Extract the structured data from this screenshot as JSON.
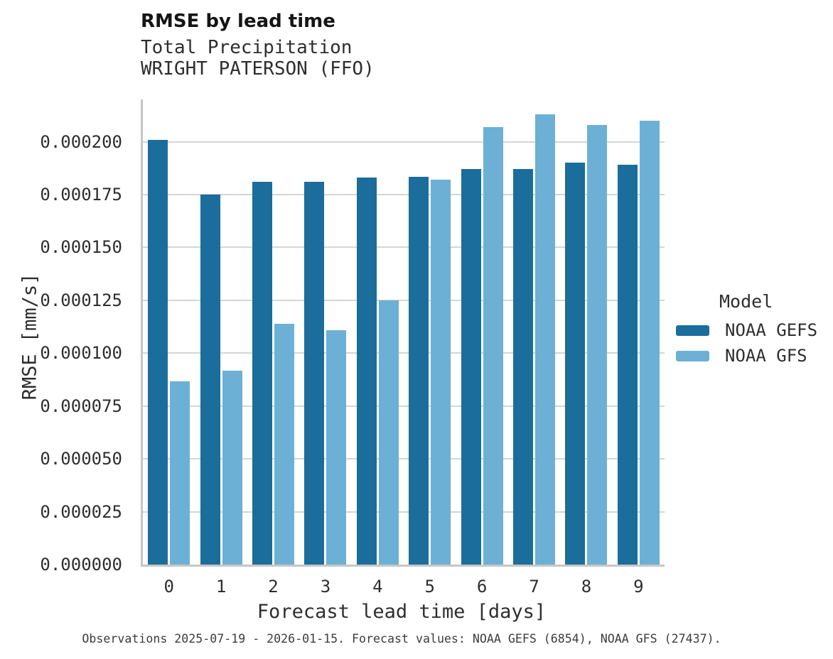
{
  "header": {
    "title": "RMSE by lead time",
    "subtitle_variable": "Total Precipitation",
    "subtitle_station": "WRIGHT PATERSON (FFO)"
  },
  "chart_data": {
    "type": "bar",
    "title": "RMSE by lead time",
    "subtitle": [
      "Total Precipitation",
      "WRIGHT PATERSON (FFO)"
    ],
    "xlabel": "Forecast lead time [days]",
    "ylabel": "RMSE [mm/s]",
    "categories": [
      "0",
      "1",
      "2",
      "3",
      "4",
      "5",
      "6",
      "7",
      "8",
      "9"
    ],
    "series": [
      {
        "name": "NOAA GEFS",
        "color": "#1b6d9b",
        "values": [
          0.000201,
          0.000175,
          0.000181,
          0.000181,
          0.000183,
          0.0001835,
          0.000187,
          0.000187,
          0.00019,
          0.000189
        ]
      },
      {
        "name": "NOAA GFS",
        "color": "#6cb0d5",
        "values": [
          8.67e-05,
          9.16e-05,
          0.000114,
          0.000111,
          0.000125,
          0.000182,
          0.000207,
          0.000213,
          0.000208,
          0.00021
        ]
      }
    ],
    "ylim": [
      0,
      0.00022
    ],
    "yticks": [
      {
        "value": 0.0,
        "label": "0.000000"
      },
      {
        "value": 2.5e-05,
        "label": "0.000025"
      },
      {
        "value": 5e-05,
        "label": "0.000050"
      },
      {
        "value": 7.5e-05,
        "label": "0.000075"
      },
      {
        "value": 0.0001,
        "label": "0.000100"
      },
      {
        "value": 0.000125,
        "label": "0.000125"
      },
      {
        "value": 0.00015,
        "label": "0.000150"
      },
      {
        "value": 0.000175,
        "label": "0.000175"
      },
      {
        "value": 0.0002,
        "label": "0.000200"
      }
    ],
    "grid": true,
    "legend_title": "Model",
    "legend_position": "right"
  },
  "footer": {
    "note": "Observations 2025-07-19 - 2026-01-15. Forecast values: NOAA GEFS (6854), NOAA GFS (27437)."
  }
}
